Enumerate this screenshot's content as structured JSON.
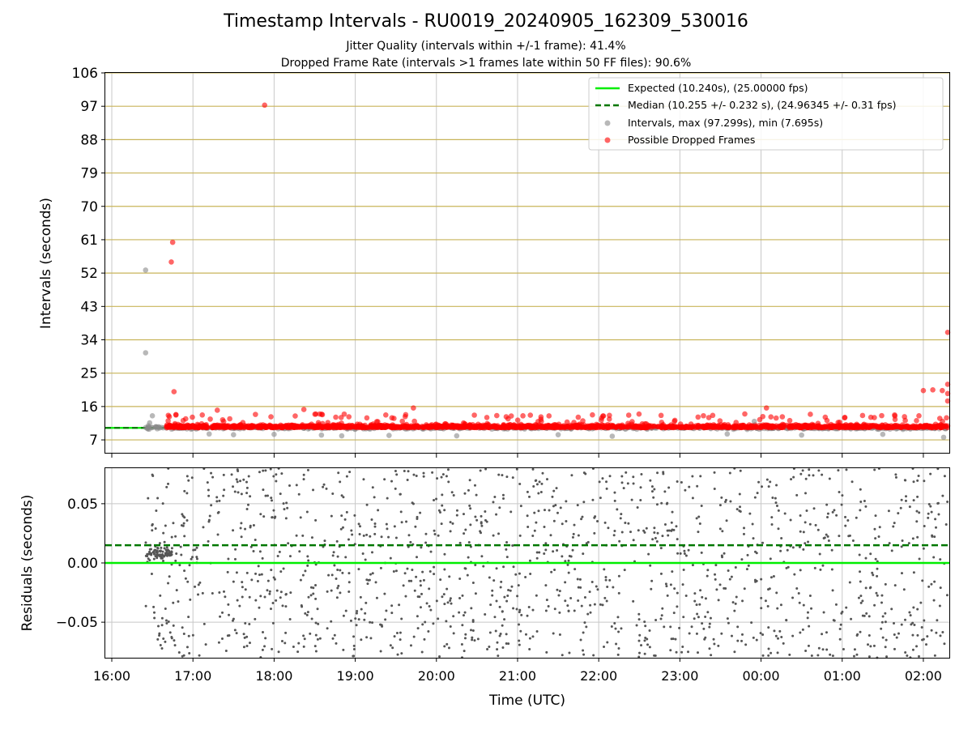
{
  "figure": {
    "title": "Timestamp Intervals - RU0019_20240905_162309_530016",
    "subtitle_1": "Jitter Quality (intervals within +/-1 frame): 41.4%",
    "subtitle_2": "Dropped Frame Rate (intervals >1 frames late within 50 FF files): 90.6%"
  },
  "colors": {
    "expected": "#00ee00",
    "median": "#007700",
    "intervals": "#888888",
    "dropped": "#ff0000",
    "hgrid": "#c8b45a",
    "vgrid": "#c8c8c8",
    "residual_points": "#555555"
  },
  "chart_data": [
    {
      "type": "scatter",
      "ylabel": "Intervals (seconds)",
      "x_ticks": [
        "16:00",
        "17:00",
        "18:00",
        "19:00",
        "20:00",
        "21:00",
        "22:00",
        "23:00",
        "00:00",
        "01:00",
        "02:00"
      ],
      "x_range_hours": [
        15.92,
        26.32
      ],
      "y_ticks": [
        7,
        16,
        25,
        34,
        43,
        52,
        61,
        70,
        79,
        88,
        97,
        106
      ],
      "ylim": [
        3.3,
        106
      ],
      "grid": true,
      "legend_position": "upper right",
      "expected_interval": 10.24,
      "median_interval": 10.255,
      "legend": [
        {
          "label": "Expected (10.240s), (25.00000 fps)",
          "kind": "solid-line",
          "color": "#00ee00"
        },
        {
          "label": "Median (10.255 +/- 0.232 s), (24.96345 +/- 0.31 fps)",
          "kind": "dashed-line",
          "color": "#007700"
        },
        {
          "label": "Intervals, max (97.299s), min (7.695s)",
          "kind": "dot",
          "color": "#888888"
        },
        {
          "label": "Possible Dropped Frames",
          "kind": "dot",
          "color": "#ff0000"
        }
      ],
      "series": [
        {
          "name": "Intervals, max (97.299s), min (7.695s)",
          "points": [
            {
              "t": "16:25",
              "y": 52.8
            },
            {
              "t": "16:25",
              "y": 30.5
            },
            {
              "t": "16:30",
              "y": 13.5
            },
            {
              "t": "16:28",
              "y": 11.6
            },
            {
              "t": "16:27",
              "y": 10.8
            },
            {
              "t": "16:33",
              "y": 10.5
            },
            {
              "t": "17:12",
              "y": 8.6
            },
            {
              "t": "17:30",
              "y": 8.4
            },
            {
              "t": "18:00",
              "y": 8.5
            },
            {
              "t": "18:35",
              "y": 8.3
            },
            {
              "t": "18:50",
              "y": 8.1
            },
            {
              "t": "19:25",
              "y": 8.2
            },
            {
              "t": "20:15",
              "y": 8.1
            },
            {
              "t": "21:30",
              "y": 8.4
            },
            {
              "t": "22:10",
              "y": 8.0
            },
            {
              "t": "23:35",
              "y": 8.6
            },
            {
              "t": "23:55",
              "y": 12.0
            },
            {
              "t": "00:30",
              "y": 8.3
            },
            {
              "t": "01:30",
              "y": 8.5
            },
            {
              "t": "02:15",
              "y": 7.7
            }
          ]
        },
        {
          "name": "Possible Dropped Frames",
          "points": [
            {
              "t": "17:53",
              "y": 97.3
            },
            {
              "t": "16:45",
              "y": 60.3
            },
            {
              "t": "16:44",
              "y": 55.0
            },
            {
              "t": "16:46",
              "y": 20.0
            },
            {
              "t": "17:18",
              "y": 15.0
            },
            {
              "t": "18:22",
              "y": 15.2
            },
            {
              "t": "19:43",
              "y": 15.6
            },
            {
              "t": "23:48",
              "y": 14.0
            },
            {
              "t": "00:04",
              "y": 15.6
            },
            {
              "t": "02:18",
              "y": 36.0
            },
            {
              "t": "02:18",
              "y": 22.0
            },
            {
              "t": "02:18",
              "y": 19.5
            },
            {
              "t": "02:18",
              "y": 17.5
            },
            {
              "t": "02:00",
              "y": 20.3
            },
            {
              "t": "02:07",
              "y": 20.5
            },
            {
              "t": "02:14",
              "y": 20.3
            }
          ]
        }
      ]
    },
    {
      "type": "scatter",
      "xlabel": "Time (UTC)",
      "ylabel": "Residuals (seconds)",
      "x_ticks": [
        "16:00",
        "17:00",
        "18:00",
        "19:00",
        "20:00",
        "21:00",
        "22:00",
        "23:00",
        "00:00",
        "01:00",
        "02:00"
      ],
      "x_range_hours": [
        15.92,
        26.32
      ],
      "y_ticks": [
        "0.05",
        "0.00",
        "−0.05"
      ],
      "y_tick_values": [
        0.05,
        0.0,
        -0.05
      ],
      "ylim": [
        -0.08,
        0.08
      ],
      "grid": true,
      "expected_residual": 0.0,
      "median_residual": 0.015,
      "series": [
        {
          "name": "Residuals",
          "distribution": "dense scatter spread uniformly across -0.08 to 0.08 from about 16:25 to 02:18, with a cluster near 0.00-0.02 around 16:25-16:45"
        }
      ]
    }
  ]
}
